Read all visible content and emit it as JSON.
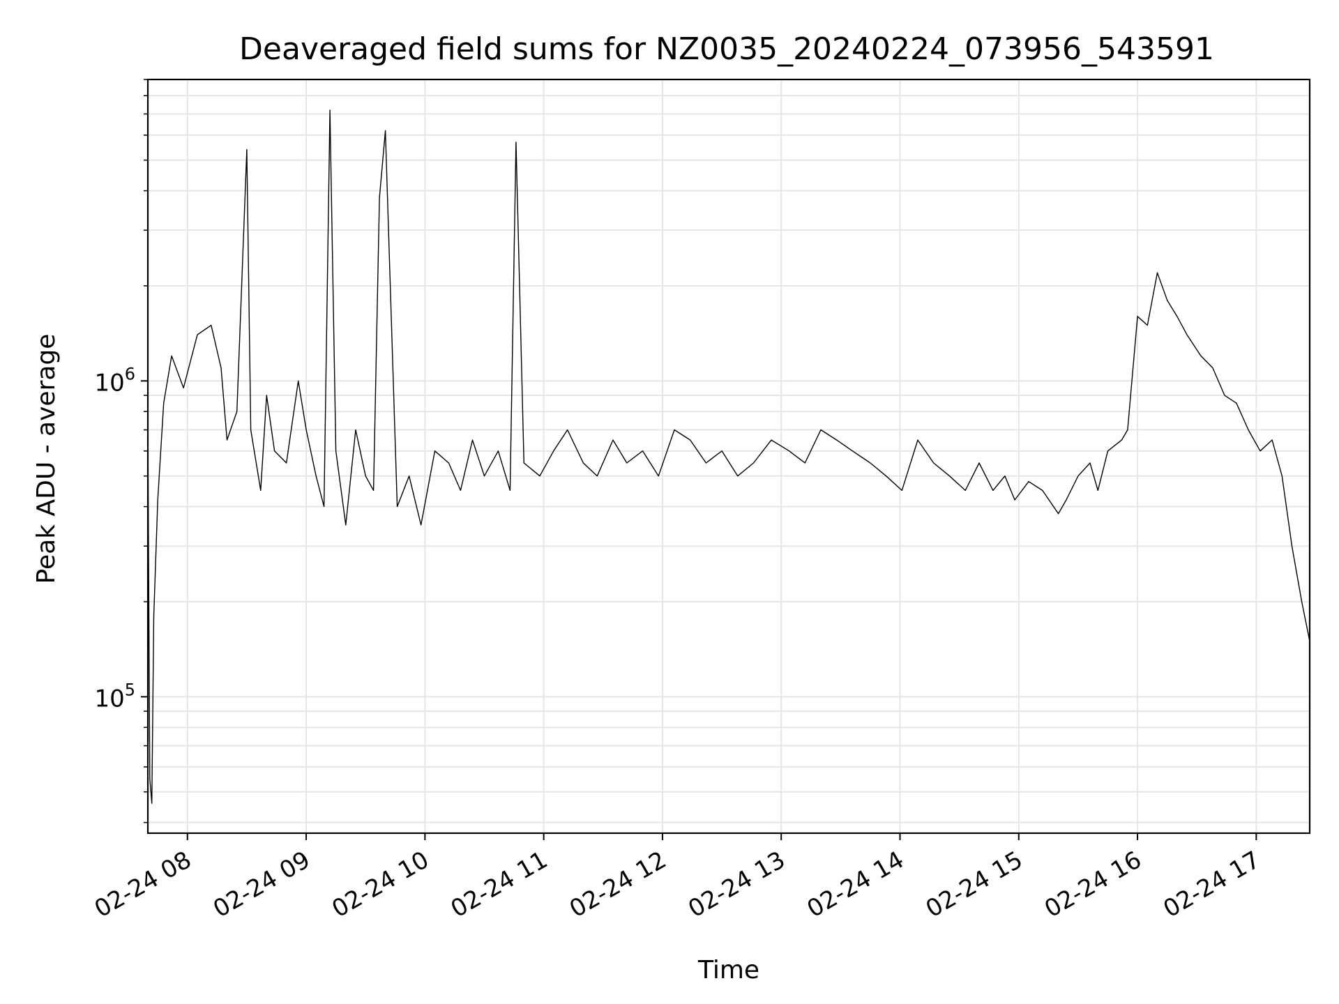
{
  "chart_data": {
    "type": "line",
    "title": "Deaveraged field sums for NZ0035_20240224_073956_543591",
    "xlabel": "Time",
    "ylabel": "Peak ADU - average",
    "yscale": "log",
    "ylim": [
      37000,
      9000000
    ],
    "xlim": [
      "2024-02-24 07:40",
      "2024-02-24 17:27"
    ],
    "grid": true,
    "x_ticks": [
      "02-24 08",
      "02-24 09",
      "02-24 10",
      "02-24 11",
      "02-24 12",
      "02-24 13",
      "02-24 14",
      "02-24 15",
      "02-24 16",
      "02-24 17"
    ],
    "y_ticks": [
      {
        "value": 100000,
        "base": "10",
        "exp": "5"
      },
      {
        "value": 1000000,
        "base": "10",
        "exp": "6"
      }
    ],
    "line_color": "#000000",
    "series": [
      {
        "x": [
          "2024-02-24 07:40",
          "2024-02-24 07:41",
          "2024-02-24 07:42",
          "2024-02-24 07:43",
          "2024-02-24 07:45",
          "2024-02-24 07:48",
          "2024-02-24 07:52",
          "2024-02-24 07:58",
          "2024-02-24 08:05",
          "2024-02-24 08:12",
          "2024-02-24 08:17",
          "2024-02-24 08:20",
          "2024-02-24 08:25",
          "2024-02-24 08:30",
          "2024-02-24 08:32",
          "2024-02-24 08:37",
          "2024-02-24 08:40",
          "2024-02-24 08:44",
          "2024-02-24 08:50",
          "2024-02-24 08:56",
          "2024-02-24 09:00",
          "2024-02-24 09:05",
          "2024-02-24 09:09",
          "2024-02-24 09:12",
          "2024-02-24 09:15",
          "2024-02-24 09:20",
          "2024-02-24 09:25",
          "2024-02-24 09:30",
          "2024-02-24 09:34",
          "2024-02-24 09:37",
          "2024-02-24 09:40",
          "2024-02-24 09:46",
          "2024-02-24 09:52",
          "2024-02-24 09:58",
          "2024-02-24 10:05",
          "2024-02-24 10:12",
          "2024-02-24 10:18",
          "2024-02-24 10:24",
          "2024-02-24 10:30",
          "2024-02-24 10:37",
          "2024-02-24 10:43",
          "2024-02-24 10:46",
          "2024-02-24 10:50",
          "2024-02-24 10:58",
          "2024-02-24 11:05",
          "2024-02-24 11:12",
          "2024-02-24 11:20",
          "2024-02-24 11:27",
          "2024-02-24 11:35",
          "2024-02-24 11:42",
          "2024-02-24 11:50",
          "2024-02-24 11:58",
          "2024-02-24 12:06",
          "2024-02-24 12:14",
          "2024-02-24 12:22",
          "2024-02-24 12:30",
          "2024-02-24 12:38",
          "2024-02-24 12:46",
          "2024-02-24 12:55",
          "2024-02-24 13:04",
          "2024-02-24 13:12",
          "2024-02-24 13:20",
          "2024-02-24 13:28",
          "2024-02-24 13:36",
          "2024-02-24 13:45",
          "2024-02-24 13:53",
          "2024-02-24 14:01",
          "2024-02-24 14:09",
          "2024-02-24 14:17",
          "2024-02-24 14:25",
          "2024-02-24 14:33",
          "2024-02-24 14:40",
          "2024-02-24 14:47",
          "2024-02-24 14:53",
          "2024-02-24 14:58",
          "2024-02-24 15:05",
          "2024-02-24 15:12",
          "2024-02-24 15:20",
          "2024-02-24 15:24",
          "2024-02-24 15:30",
          "2024-02-24 15:36",
          "2024-02-24 15:40",
          "2024-02-24 15:45",
          "2024-02-24 15:52",
          "2024-02-24 15:55",
          "2024-02-24 16:00",
          "2024-02-24 16:05",
          "2024-02-24 16:10",
          "2024-02-24 16:15",
          "2024-02-24 16:20",
          "2024-02-24 16:25",
          "2024-02-24 16:32",
          "2024-02-24 16:38",
          "2024-02-24 16:44",
          "2024-02-24 16:50",
          "2024-02-24 16:56",
          "2024-02-24 17:02",
          "2024-02-24 17:08",
          "2024-02-24 17:13",
          "2024-02-24 17:18",
          "2024-02-24 17:23",
          "2024-02-24 17:27"
        ],
        "values": [
          730000,
          55000,
          46000,
          180000,
          420000,
          850000,
          1200000,
          950000,
          1400000,
          1500000,
          1100000,
          650000,
          800000,
          5400000,
          700000,
          450000,
          900000,
          600000,
          550000,
          1000000,
          700000,
          500000,
          400000,
          7200000,
          600000,
          350000,
          700000,
          500000,
          450000,
          3800000,
          6200000,
          400000,
          500000,
          350000,
          600000,
          550000,
          450000,
          650000,
          500000,
          600000,
          450000,
          5700000,
          550000,
          500000,
          600000,
          700000,
          550000,
          500000,
          650000,
          550000,
          600000,
          500000,
          700000,
          650000,
          550000,
          600000,
          500000,
          550000,
          650000,
          600000,
          550000,
          700000,
          650000,
          600000,
          550000,
          500000,
          450000,
          650000,
          550000,
          500000,
          450000,
          550000,
          450000,
          500000,
          420000,
          480000,
          450000,
          380000,
          420000,
          500000,
          550000,
          450000,
          600000,
          650000,
          700000,
          1600000,
          1500000,
          2200000,
          1800000,
          1600000,
          1400000,
          1200000,
          1100000,
          900000,
          850000,
          700000,
          600000,
          650000,
          500000,
          300000,
          200000,
          150000
        ]
      }
    ]
  }
}
